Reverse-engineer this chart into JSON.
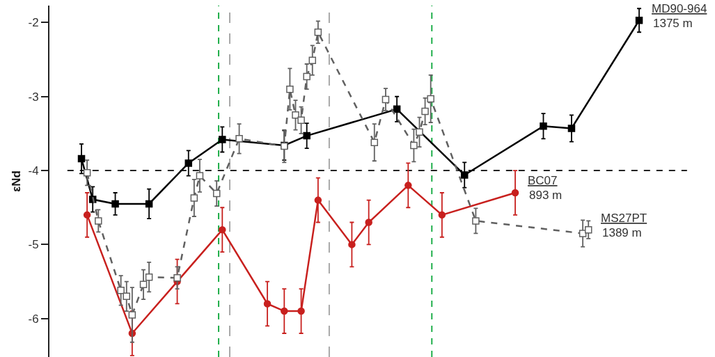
{
  "chart_data": {
    "type": "line",
    "ylabel": "εNd",
    "ylim": [
      -6.52,
      -1.77
    ],
    "yticks": [
      -6,
      -5,
      -4,
      -3,
      -2
    ],
    "tick_labels": "y",
    "legend": "right",
    "line_style": "solid",
    "categories": [
      null,
      null,
      null,
      null,
      null,
      null,
      null,
      null,
      null,
      null,
      null,
      null,
      null,
      null,
      null,
      null,
      null,
      null,
      null,
      null,
      null,
      null,
      null,
      null,
      null,
      null,
      null,
      null,
      null,
      null,
      null,
      null,
      null,
      null,
      null,
      null,
      null,
      null,
      null,
      null,
      null,
      null,
      null,
      null,
      null,
      null,
      null,
      null,
      null,
      null,
      null,
      null,
      null,
      null,
      null,
      null,
      null,
      null,
      null,
      null,
      null,
      null,
      null,
      null,
      null,
      null,
      null,
      null,
      null,
      null,
      null,
      null,
      null,
      null,
      null,
      null,
      null,
      null,
      null,
      null,
      null,
      null,
      null,
      null,
      null,
      null,
      null,
      null,
      null,
      null,
      null,
      null,
      null,
      null,
      null,
      null,
      null,
      null,
      null,
      null,
      null,
      null,
      null,
      null,
      null,
      null,
      null,
      null,
      null,
      null
    ],
    "series": [
      {
        "name": "MD90-964",
        "color": "#000000",
        "marker": "square",
        "values": [
          null,
          null,
          -3.84,
          null,
          -4.39,
          null,
          null,
          null,
          -4.45,
          null,
          null,
          null,
          null,
          null,
          -4.45,
          null,
          null,
          null,
          null,
          null,
          null,
          -3.9,
          null,
          null,
          null,
          null,
          null,
          -3.58,
          null,
          null,
          null,
          null,
          null,
          null,
          null,
          null,
          null,
          null,
          -3.66,
          null,
          null,
          null,
          -3.53,
          null,
          null,
          null,
          null,
          null,
          null,
          null,
          null,
          null,
          null,
          null,
          null,
          null,
          null,
          null,
          -3.17,
          null,
          null,
          null,
          null,
          null,
          null,
          null,
          null,
          null,
          null,
          null,
          -4.06,
          null,
          null,
          null,
          null,
          null,
          null,
          null,
          null,
          null,
          null,
          null,
          null,
          null,
          -3.4,
          null,
          null,
          null,
          null,
          -3.43,
          null,
          null,
          null,
          null,
          null,
          null,
          null,
          null,
          null,
          null,
          null,
          -1.97,
          null,
          null,
          null,
          null,
          null,
          null,
          null,
          null
        ],
        "errors": [
          null,
          null,
          0.2,
          null,
          0.17,
          null,
          null,
          null,
          0.15,
          null,
          null,
          null,
          null,
          null,
          0.2,
          null,
          null,
          null,
          null,
          null,
          null,
          0.17,
          null,
          null,
          null,
          null,
          null,
          0.17,
          null,
          null,
          null,
          null,
          null,
          null,
          null,
          null,
          null,
          null,
          0.2,
          null,
          null,
          null,
          0.17,
          null,
          null,
          null,
          null,
          null,
          null,
          null,
          null,
          null,
          null,
          null,
          null,
          null,
          null,
          null,
          0.17,
          null,
          null,
          null,
          null,
          null,
          null,
          null,
          null,
          null,
          null,
          null,
          0.17,
          null,
          null,
          null,
          null,
          null,
          null,
          null,
          null,
          null,
          null,
          null,
          null,
          null,
          0.17,
          null,
          null,
          null,
          null,
          0.18,
          null,
          null,
          null,
          null,
          null,
          null,
          null,
          null,
          null,
          null,
          null,
          0.16,
          null,
          null,
          null,
          null,
          null,
          null,
          null,
          null
        ]
      },
      {
        "name": "BC07",
        "color": "#c8201e",
        "marker": "circle",
        "values": [
          null,
          null,
          null,
          -4.6,
          null,
          null,
          null,
          null,
          null,
          null,
          null,
          -6.2,
          null,
          null,
          null,
          null,
          null,
          null,
          null,
          -5.5,
          null,
          null,
          null,
          null,
          null,
          null,
          null,
          -4.8,
          null,
          null,
          null,
          null,
          null,
          null,
          null,
          -5.8,
          null,
          null,
          -5.9,
          null,
          null,
          -5.9,
          null,
          null,
          -4.4,
          null,
          null,
          null,
          null,
          null,
          -5.0,
          null,
          null,
          -4.7,
          null,
          null,
          null,
          null,
          null,
          null,
          -4.2,
          null,
          null,
          null,
          null,
          null,
          -4.6,
          null,
          null,
          null,
          null,
          null,
          null,
          null,
          null,
          null,
          null,
          null,
          null,
          -4.3,
          null,
          null,
          null,
          null,
          null,
          null,
          null,
          null,
          null,
          null,
          null,
          null,
          null,
          null,
          null,
          null,
          null,
          null,
          null,
          null,
          null,
          null,
          null,
          null,
          null,
          null,
          null,
          null,
          null,
          null
        ],
        "errors": [
          null,
          null,
          null,
          0.3,
          null,
          null,
          null,
          null,
          null,
          null,
          null,
          0.3,
          null,
          null,
          null,
          null,
          null,
          null,
          null,
          0.3,
          null,
          null,
          null,
          null,
          null,
          null,
          null,
          0.3,
          null,
          null,
          null,
          null,
          null,
          null,
          null,
          0.3,
          null,
          null,
          0.3,
          null,
          null,
          0.3,
          null,
          null,
          0.3,
          null,
          null,
          null,
          null,
          null,
          0.3,
          null,
          null,
          0.3,
          null,
          null,
          null,
          null,
          null,
          null,
          0.3,
          null,
          null,
          null,
          null,
          null,
          0.3,
          null,
          null,
          null,
          null,
          null,
          null,
          null,
          null,
          null,
          null,
          null,
          null,
          0.3,
          null,
          null,
          null,
          null,
          null,
          null,
          null,
          null,
          null,
          null,
          null,
          null,
          null,
          null,
          null,
          null,
          null,
          null,
          null,
          null,
          null,
          null,
          null,
          null,
          null,
          null,
          null,
          null,
          null,
          null
        ]
      },
      {
        "name": "MS27PT",
        "color": "#606060",
        "marker": "square",
        "line_style": "dashed",
        "values": [
          null,
          null,
          null,
          -4.03,
          null,
          -4.68,
          null,
          null,
          null,
          -5.62,
          -5.7,
          -5.95,
          null,
          -5.54,
          -5.44,
          null,
          null,
          null,
          null,
          -5.45,
          null,
          null,
          -4.37,
          -4.07,
          null,
          null,
          -4.31,
          null,
          null,
          null,
          -3.57,
          null,
          null,
          null,
          null,
          null,
          null,
          null,
          -3.67,
          -2.9,
          -3.25,
          -3.32,
          -2.73,
          -2.51,
          -2.13,
          null,
          null,
          null,
          null,
          null,
          null,
          null,
          null,
          null,
          -3.62,
          null,
          -3.04,
          null,
          null,
          null,
          null,
          -3.66,
          -3.48,
          -3.2,
          -3.03,
          null,
          null,
          null,
          null,
          null,
          null,
          null,
          -4.68,
          null,
          null,
          null,
          null,
          null,
          null,
          null,
          null,
          null,
          null,
          null,
          null,
          null,
          null,
          null,
          null,
          null,
          null,
          -4.85,
          -4.8,
          null,
          null,
          null,
          null,
          null,
          null,
          null,
          null,
          null,
          null,
          null,
          null,
          null,
          null,
          null,
          null,
          null
        ],
        "errors": [
          null,
          null,
          null,
          0.17,
          null,
          0.15,
          null,
          null,
          null,
          0.2,
          0.2,
          0.37,
          null,
          0.2,
          0.2,
          null,
          null,
          null,
          null,
          0.15,
          null,
          null,
          0.25,
          0.22,
          null,
          null,
          0.17,
          null,
          null,
          null,
          0.2,
          null,
          null,
          null,
          null,
          null,
          null,
          null,
          0.22,
          0.28,
          0.2,
          0.18,
          0.17,
          0.2,
          0.15,
          null,
          null,
          null,
          null,
          null,
          null,
          null,
          null,
          null,
          0.25,
          null,
          0.15,
          null,
          null,
          null,
          null,
          0.22,
          0.2,
          0.18,
          0.32,
          null,
          null,
          null,
          null,
          null,
          null,
          null,
          0.17,
          null,
          null,
          null,
          null,
          null,
          null,
          null,
          null,
          null,
          null,
          null,
          null,
          null,
          null,
          null,
          null,
          null,
          null,
          0.18,
          0.12,
          null,
          null,
          null,
          null,
          null,
          null,
          null,
          null,
          null,
          null,
          null,
          null,
          null,
          null,
          null,
          null,
          null
        ]
      }
    ],
    "ref_lines": [
      {
        "axis": "y",
        "value": -4,
        "color": "#222222",
        "line_style": "dashed"
      }
    ],
    "annotations": [
      "1375 m",
      "893 m",
      "1389 m"
    ]
  }
}
